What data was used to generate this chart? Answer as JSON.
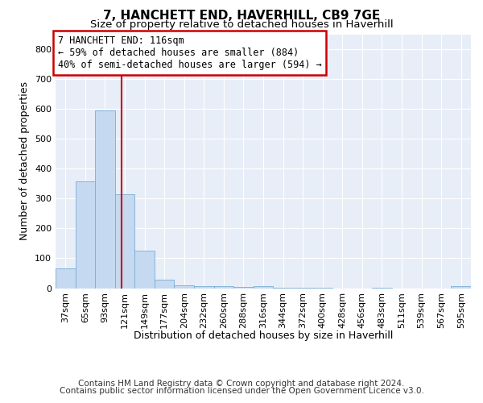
{
  "title": "7, HANCHETT END, HAVERHILL, CB9 7GE",
  "subtitle": "Size of property relative to detached houses in Haverhill",
  "xlabel": "Distribution of detached houses by size in Haverhill",
  "ylabel": "Number of detached properties",
  "bar_labels": [
    "37sqm",
    "65sqm",
    "93sqm",
    "121sqm",
    "149sqm",
    "177sqm",
    "204sqm",
    "232sqm",
    "260sqm",
    "288sqm",
    "316sqm",
    "344sqm",
    "372sqm",
    "400sqm",
    "428sqm",
    "456sqm",
    "483sqm",
    "511sqm",
    "539sqm",
    "567sqm",
    "595sqm"
  ],
  "bar_heights": [
    65,
    358,
    596,
    314,
    126,
    28,
    10,
    8,
    8,
    3,
    8,
    1,
    1,
    1,
    0,
    0,
    1,
    0,
    0,
    0,
    8
  ],
  "bar_color": "#c5d9f0",
  "bar_edge_color": "#7aadd4",
  "ylim": [
    0,
    850
  ],
  "yticks": [
    0,
    100,
    200,
    300,
    400,
    500,
    600,
    700,
    800
  ],
  "property_line_x": 2.83,
  "annotation_text": "7 HANCHETT END: 116sqm\n← 59% of detached houses are smaller (884)\n40% of semi-detached houses are larger (594) →",
  "annotation_box_color": "#ffffff",
  "annotation_box_edge": "#cc0000",
  "line_color": "#cc0000",
  "footer_line1": "Contains HM Land Registry data © Crown copyright and database right 2024.",
  "footer_line2": "Contains public sector information licensed under the Open Government Licence v3.0.",
  "plot_bg_color": "#e8eef8",
  "fig_bg_color": "#ffffff",
  "grid_color": "#ffffff",
  "title_fontsize": 11,
  "subtitle_fontsize": 9.5,
  "axis_label_fontsize": 9,
  "tick_fontsize": 8,
  "annotation_fontsize": 8.5,
  "footer_fontsize": 7.5
}
